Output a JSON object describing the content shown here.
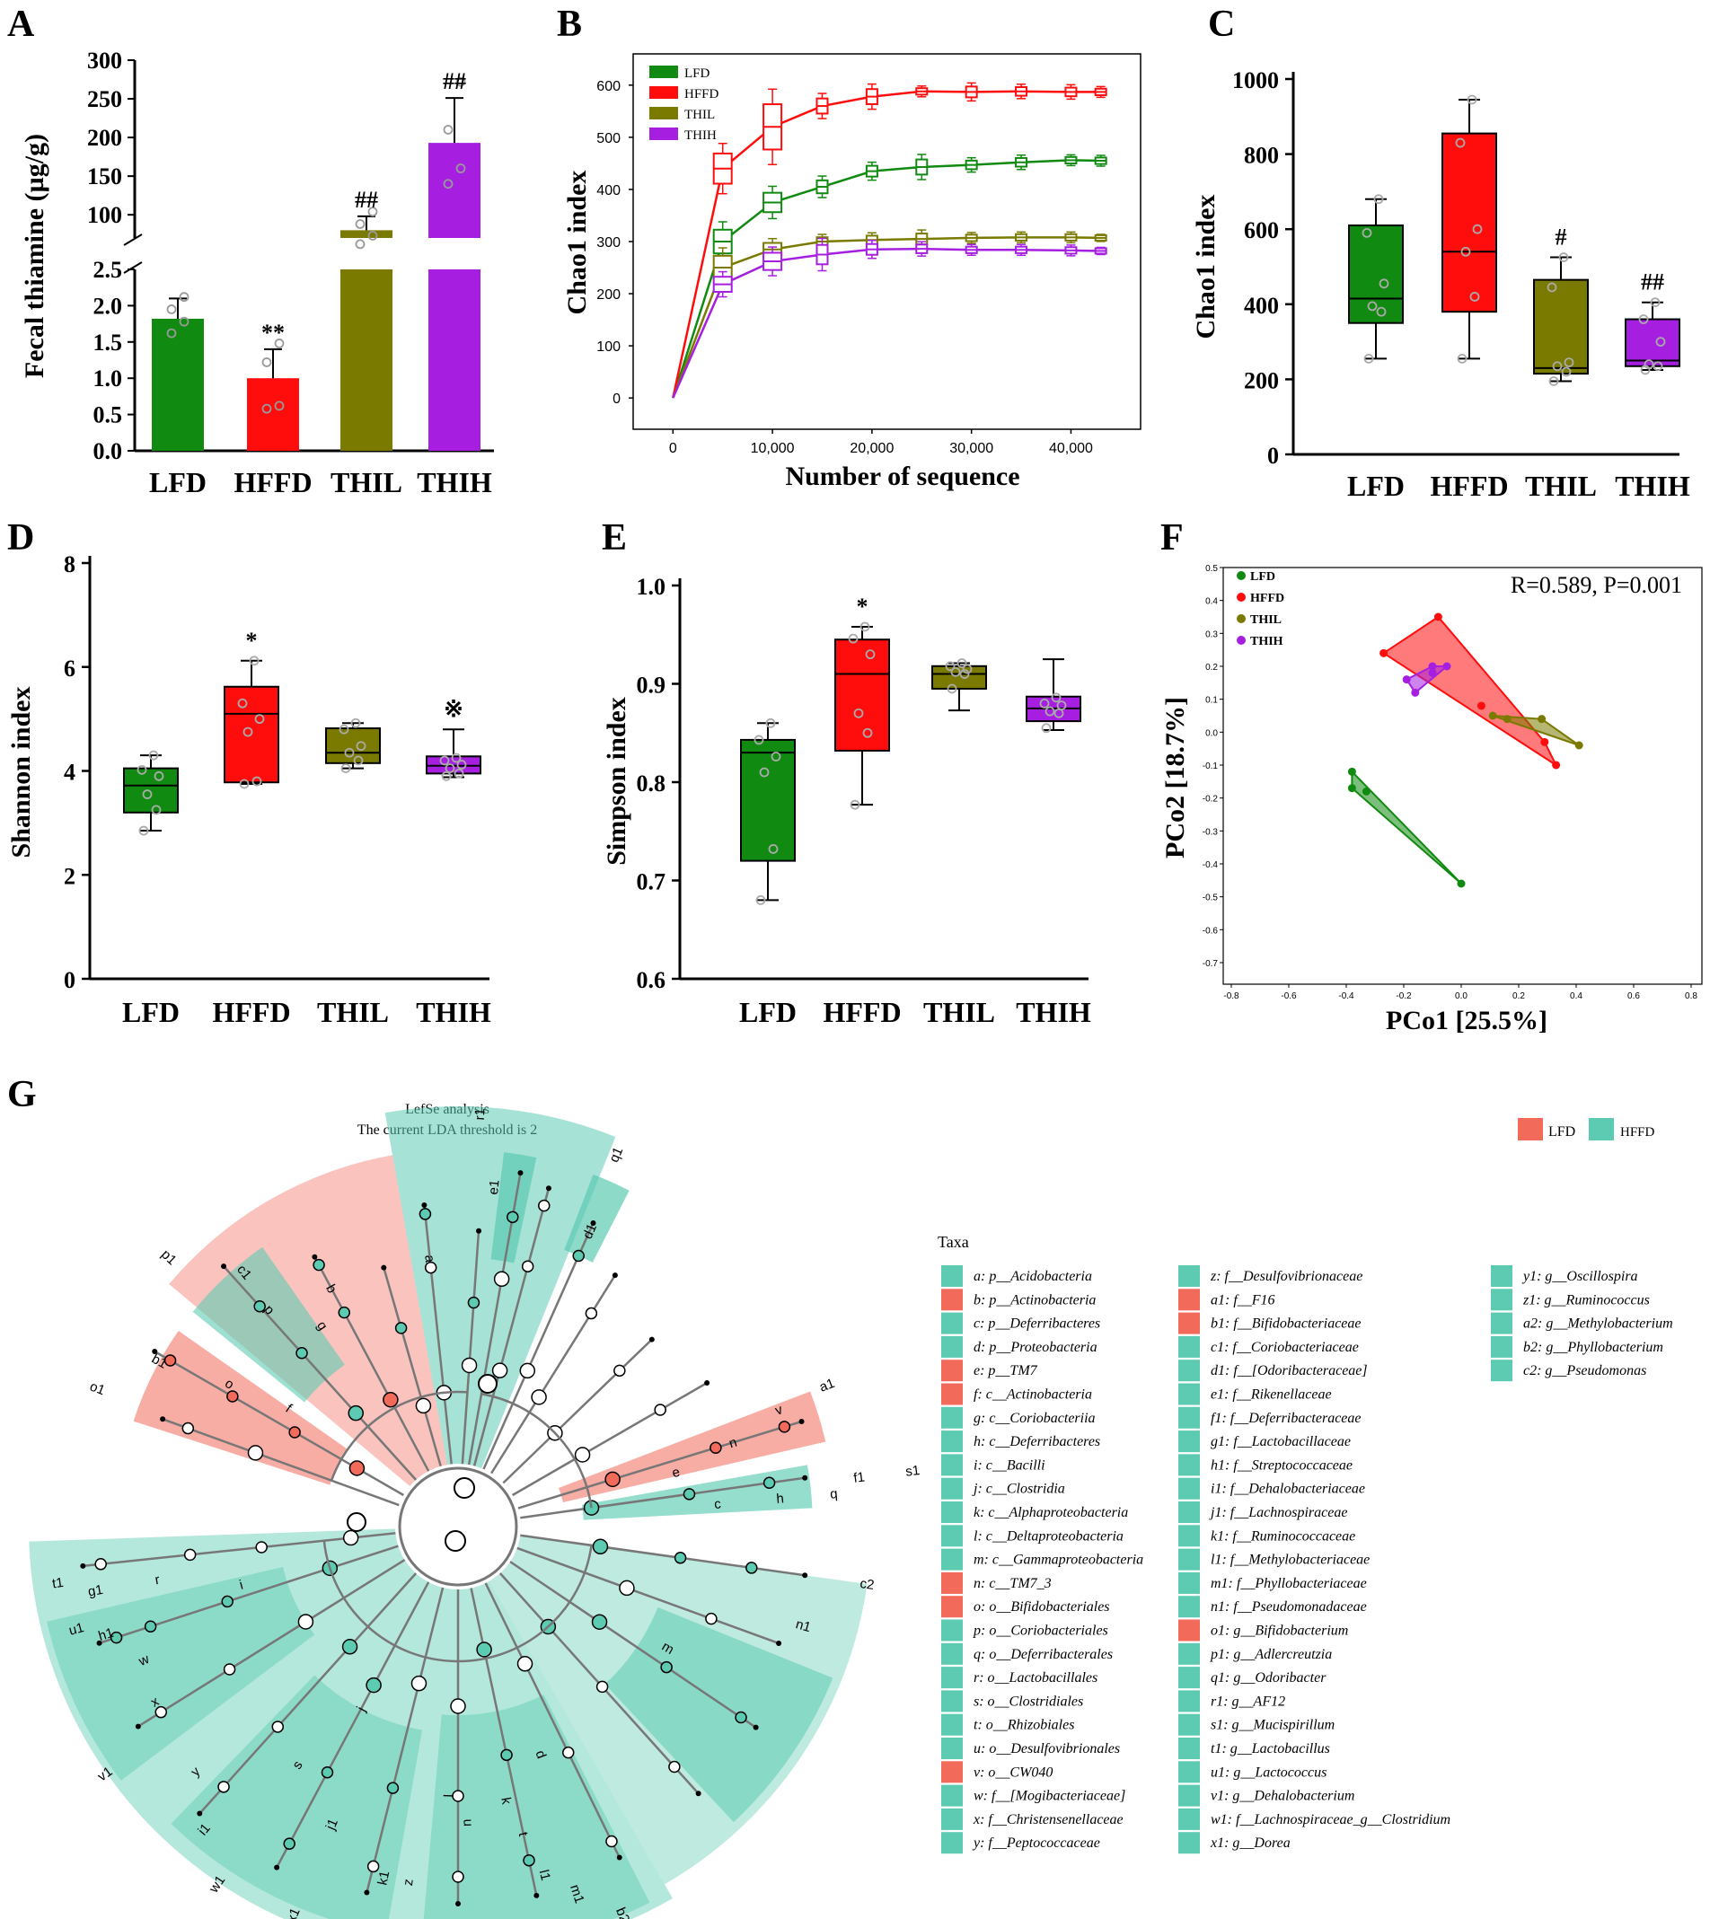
{
  "figure_labels": [
    "A",
    "B",
    "C",
    "D",
    "E",
    "F",
    "G"
  ],
  "colors": {
    "LFD": "#118a11",
    "HFFD": "#ff0d0d",
    "THIL": "#7a7a00",
    "THIH": "#a61fe0",
    "lefse_LFD": "#f26a5a",
    "lefse_HFFD": "#5ccbb2"
  },
  "chart_data": [
    {
      "id": "A",
      "type": "bar",
      "title": "",
      "ylabel": "Fecal thiamine (µg/g)",
      "xlabel": "",
      "categories": [
        "LFD",
        "HFFD",
        "THIL",
        "THIH"
      ],
      "values": [
        1.82,
        1.0,
        80,
        193
      ],
      "errors": [
        0.28,
        0.4,
        18,
        58
      ],
      "points": [
        [
          1.62,
          1.78,
          1.95,
          2.12
        ],
        [
          0.58,
          0.62,
          1.22,
          1.48
        ],
        [
          62,
          73,
          88,
          104
        ],
        [
          140,
          160,
          210,
          272
        ]
      ],
      "annotations": [
        "",
        "**",
        "##",
        "##"
      ],
      "y_lower_ticks": [
        "0.0",
        "0.5",
        "1.0",
        "1.5",
        "2.0",
        "2.5"
      ],
      "y_upper_ticks": [
        "100",
        "150",
        "200",
        "250",
        "300"
      ],
      "ylim_lower": [
        0,
        2.5
      ],
      "ylim_upper": [
        70,
        300
      ],
      "axis_break": true
    },
    {
      "id": "B",
      "type": "line",
      "title": "",
      "xlabel": "Number of sequence",
      "ylabel": "Chao1 index",
      "x": [
        0,
        5000,
        10000,
        15000,
        20000,
        25000,
        30000,
        35000,
        40000,
        43000
      ],
      "series": [
        {
          "name": "LFD",
          "values": [
            0,
            300,
            375,
            405,
            435,
            443,
            447,
            452,
            456,
            455
          ]
        },
        {
          "name": "HFFD",
          "values": [
            0,
            440,
            520,
            560,
            578,
            588,
            587,
            588,
            587,
            587
          ]
        },
        {
          "name": "THIL",
          "values": [
            0,
            250,
            285,
            300,
            303,
            305,
            307,
            308,
            308,
            307
          ]
        },
        {
          "name": "THIH",
          "values": [
            0,
            218,
            262,
            275,
            285,
            286,
            284,
            284,
            283,
            282
          ]
        }
      ],
      "x_ticks": [
        "0",
        "10,000",
        "20,000",
        "30,000",
        "40,000"
      ],
      "y_ticks": [
        "0",
        "100",
        "200",
        "300",
        "400",
        "500",
        "600"
      ],
      "xlim": [
        -4000,
        47000
      ],
      "ylim": [
        -60,
        660
      ],
      "legend": "top-left"
    },
    {
      "id": "C",
      "type": "box",
      "title": "",
      "ylabel": "Chao1 index",
      "categories": [
        "LFD",
        "HFFD",
        "THIL",
        "THIH"
      ],
      "boxes": [
        {
          "min": 255,
          "q1": 350,
          "median": 415,
          "q3": 610,
          "max": 680
        },
        {
          "min": 255,
          "q1": 380,
          "median": 540,
          "q3": 855,
          "max": 945
        },
        {
          "min": 195,
          "q1": 215,
          "median": 230,
          "q3": 465,
          "max": 525
        },
        {
          "min": 225,
          "q1": 235,
          "median": 250,
          "q3": 360,
          "max": 405
        }
      ],
      "points": [
        [
          255,
          380,
          395,
          455,
          590,
          680
        ],
        [
          255,
          420,
          540,
          600,
          830,
          945
        ],
        [
          195,
          220,
          235,
          245,
          445,
          525
        ],
        [
          225,
          235,
          240,
          300,
          360,
          405
        ]
      ],
      "annotations": [
        "",
        "",
        "#",
        "##"
      ],
      "y_ticks": [
        "0",
        "200",
        "400",
        "600",
        "800",
        "1000"
      ],
      "ylim": [
        0,
        1000
      ]
    },
    {
      "id": "D",
      "type": "box",
      "title": "",
      "ylabel": "Shannon index",
      "categories": [
        "LFD",
        "HFFD",
        "THIL",
        "THIH"
      ],
      "boxes": [
        {
          "min": 2.85,
          "q1": 3.2,
          "median": 3.72,
          "q3": 4.05,
          "max": 4.3
        },
        {
          "min": 3.75,
          "q1": 3.78,
          "median": 5.1,
          "q3": 5.62,
          "max": 6.12
        },
        {
          "min": 4.05,
          "q1": 4.15,
          "median": 4.35,
          "q3": 4.82,
          "max": 4.92
        },
        {
          "min": 3.88,
          "q1": 3.95,
          "median": 4.1,
          "q3": 4.28,
          "max": 4.8
        }
      ],
      "points": [
        [
          2.85,
          3.25,
          3.55,
          3.9,
          4.02,
          4.3
        ],
        [
          3.75,
          3.8,
          4.75,
          5.0,
          5.3,
          6.12
        ],
        [
          4.05,
          4.2,
          4.35,
          4.48,
          4.8,
          4.92
        ],
        [
          3.9,
          3.95,
          4.05,
          4.12,
          4.2,
          4.25
        ]
      ],
      "annotations": [
        "",
        "*",
        "",
        "※"
      ],
      "y_ticks": [
        "0",
        "2",
        "4",
        "6",
        "8"
      ],
      "ylim": [
        0,
        8
      ]
    },
    {
      "id": "E",
      "type": "box",
      "title": "",
      "ylabel": "Simpson index",
      "categories": [
        "LFD",
        "HFFD",
        "THIL",
        "THIH"
      ],
      "boxes": [
        {
          "min": 0.68,
          "q1": 0.72,
          "median": 0.83,
          "q3": 0.843,
          "max": 0.86
        },
        {
          "min": 0.777,
          "q1": 0.832,
          "median": 0.91,
          "q3": 0.945,
          "max": 0.958
        },
        {
          "min": 0.873,
          "q1": 0.895,
          "median": 0.91,
          "q3": 0.918,
          "max": 0.921
        },
        {
          "min": 0.853,
          "q1": 0.862,
          "median": 0.875,
          "q3": 0.887,
          "max": 0.925
        }
      ],
      "points": [
        [
          0.68,
          0.732,
          0.81,
          0.826,
          0.843,
          0.86
        ],
        [
          0.777,
          0.85,
          0.87,
          0.93,
          0.946,
          0.958
        ],
        [
          0.895,
          0.91,
          0.912,
          0.915,
          0.918,
          0.921
        ],
        [
          0.855,
          0.87,
          0.872,
          0.878,
          0.88,
          0.886
        ]
      ],
      "annotations": [
        "",
        "*",
        "",
        ""
      ],
      "y_ticks": [
        "0.6",
        "0.7",
        "0.8",
        "0.9",
        "1.0"
      ],
      "ylim": [
        0.6,
        1.0
      ]
    },
    {
      "id": "F",
      "type": "scatter",
      "title": "",
      "xlabel": "PCo1 [25.5%]",
      "ylabel": "PCo2 [18.7%]",
      "stat_text": "R=0.589,  P=0.001",
      "series": [
        {
          "name": "LFD",
          "points": [
            [
              -0.38,
              -0.12
            ],
            [
              -0.38,
              -0.17
            ],
            [
              -0.33,
              -0.18
            ],
            [
              0.0,
              -0.46
            ]
          ]
        },
        {
          "name": "HFFD",
          "points": [
            [
              -0.27,
              0.24
            ],
            [
              -0.08,
              0.35
            ],
            [
              0.07,
              0.08
            ],
            [
              0.29,
              -0.03
            ],
            [
              0.33,
              -0.1
            ]
          ]
        },
        {
          "name": "THIL",
          "points": [
            [
              0.11,
              0.05
            ],
            [
              0.16,
              0.04
            ],
            [
              0.28,
              0.04
            ],
            [
              0.41,
              -0.04
            ]
          ]
        },
        {
          "name": "THIH",
          "points": [
            [
              -0.19,
              0.16
            ],
            [
              -0.1,
              0.18
            ],
            [
              -0.1,
              0.2
            ],
            [
              -0.05,
              0.2
            ],
            [
              -0.16,
              0.12
            ]
          ]
        }
      ],
      "x_ticks": [
        "-0.8",
        "-0.6",
        "-0.4",
        "-0.2",
        "0.0",
        "0.2",
        "0.4",
        "0.6",
        "0.8"
      ],
      "y_ticks": [
        "0.5",
        "0.4",
        "0.3",
        "0.2",
        "0.1",
        "0.0",
        "-0.1",
        "-0.2",
        "-0.3",
        "-0.4",
        "-0.5",
        "-0.6",
        "-0.7"
      ],
      "xlim": [
        -0.8,
        0.8
      ],
      "ylim": [
        -0.7,
        0.5
      ],
      "legend": "top-left"
    },
    {
      "id": "G",
      "type": "cladogram",
      "title": "LefSe analysis",
      "subtitle": "The current LDA threshold is 2",
      "legend": [
        "LFD",
        "HFFD"
      ],
      "taxa_title": "Taxa",
      "taxa_columns": [
        [
          {
            "t": "a: p__Acidobacteria",
            "g": "HFFD"
          },
          {
            "t": "b: p__Actinobacteria",
            "g": "LFD"
          },
          {
            "t": "c: p__Deferribacteres",
            "g": "HFFD"
          },
          {
            "t": "d: p__Proteobacteria",
            "g": "HFFD"
          },
          {
            "t": "e: p__TM7",
            "g": "LFD"
          },
          {
            "t": "f: c__Actinobacteria",
            "g": "LFD"
          },
          {
            "t": "g: c__Coriobacteriia",
            "g": "HFFD"
          },
          {
            "t": "h: c__Deferribacteres",
            "g": "HFFD"
          },
          {
            "t": "i: c__Bacilli",
            "g": "HFFD"
          },
          {
            "t": "j: c__Clostridia",
            "g": "HFFD"
          },
          {
            "t": "k: c__Alphaproteobacteria",
            "g": "HFFD"
          },
          {
            "t": "l: c__Deltaproteobacteria",
            "g": "HFFD"
          },
          {
            "t": "m: c__Gammaproteobacteria",
            "g": "HFFD"
          },
          {
            "t": "n: c__TM7_3",
            "g": "LFD"
          },
          {
            "t": "o: o__Bifidobacteriales",
            "g": "LFD"
          },
          {
            "t": "p: o__Coriobacteriales",
            "g": "HFFD"
          },
          {
            "t": "q: o__Deferribacterales",
            "g": "HFFD"
          },
          {
            "t": "r: o__Lactobacillales",
            "g": "HFFD"
          },
          {
            "t": "s: o__Clostridiales",
            "g": "HFFD"
          },
          {
            "t": "t: o__Rhizobiales",
            "g": "HFFD"
          },
          {
            "t": "u: o__Desulfovibrionales",
            "g": "HFFD"
          },
          {
            "t": "v: o__CW040",
            "g": "LFD"
          },
          {
            "t": "w: f__[Mogibacteriaceae]",
            "g": "HFFD"
          },
          {
            "t": "x: f__Christensenellaceae",
            "g": "HFFD"
          },
          {
            "t": "y: f__Peptococcaceae",
            "g": "HFFD"
          }
        ],
        [
          {
            "t": "z: f__Desulfovibrionaceae",
            "g": "HFFD"
          },
          {
            "t": "a1: f__F16",
            "g": "LFD"
          },
          {
            "t": "b1: f__Bifidobacteriaceae",
            "g": "LFD"
          },
          {
            "t": "c1: f__Coriobacteriaceae",
            "g": "HFFD"
          },
          {
            "t": "d1: f__[Odoribacteraceae]",
            "g": "HFFD"
          },
          {
            "t": "e1: f__Rikenellaceae",
            "g": "HFFD"
          },
          {
            "t": "f1: f__Deferribacteraceae",
            "g": "HFFD"
          },
          {
            "t": "g1: f__Lactobacillaceae",
            "g": "HFFD"
          },
          {
            "t": "h1: f__Streptococcaceae",
            "g": "HFFD"
          },
          {
            "t": "i1: f__Dehalobacteriaceae",
            "g": "HFFD"
          },
          {
            "t": "j1: f__Lachnospiraceae",
            "g": "HFFD"
          },
          {
            "t": "k1: f__Ruminococcaceae",
            "g": "HFFD"
          },
          {
            "t": "l1: f__Methylobacteriaceae",
            "g": "HFFD"
          },
          {
            "t": "m1: f__Phyllobacteriaceae",
            "g": "HFFD"
          },
          {
            "t": "n1: f__Pseudomonadaceae",
            "g": "HFFD"
          },
          {
            "t": "o1: g__Bifidobacterium",
            "g": "LFD"
          },
          {
            "t": "p1: g__Adlercreutzia",
            "g": "HFFD"
          },
          {
            "t": "q1: g__Odoribacter",
            "g": "HFFD"
          },
          {
            "t": "r1: g__AF12",
            "g": "HFFD"
          },
          {
            "t": "s1: g__Mucispirillum",
            "g": "HFFD"
          },
          {
            "t": "t1: g__Lactobacillus",
            "g": "HFFD"
          },
          {
            "t": "u1: g__Lactococcus",
            "g": "HFFD"
          },
          {
            "t": "v1: g__Dehalobacterium",
            "g": "HFFD"
          },
          {
            "t": "w1: f__Lachnospiraceae_g__Clostridium",
            "g": "HFFD"
          },
          {
            "t": "x1: g__Dorea",
            "g": "HFFD"
          }
        ],
        [
          {
            "t": "y1: g__Oscillospira",
            "g": "HFFD"
          },
          {
            "t": "z1: g__Ruminococcus",
            "g": "HFFD"
          },
          {
            "t": "a2: g__Methylobacterium",
            "g": "HFFD"
          },
          {
            "t": "b2: g__Phyllobacterium",
            "g": "HFFD"
          },
          {
            "t": "c2: g__Pseudomonas",
            "g": "HFFD"
          }
        ]
      ],
      "tree_labels": [
        "a",
        "b",
        "c",
        "d",
        "e",
        "f",
        "g",
        "h",
        "i",
        "j",
        "k",
        "l",
        "m",
        "n",
        "o",
        "p",
        "q",
        "r",
        "s",
        "t",
        "u",
        "v",
        "w",
        "x",
        "y",
        "z",
        "a1",
        "b1",
        "c1",
        "d1",
        "e1",
        "f1",
        "g1",
        "h1",
        "i1",
        "j1",
        "k1",
        "l1",
        "m1",
        "n1",
        "o1",
        "p1",
        "q1",
        "r1",
        "s1",
        "t1",
        "u1",
        "v1",
        "w1",
        "x1",
        "y1",
        "z1",
        "a2",
        "b2",
        "c2"
      ]
    }
  ]
}
